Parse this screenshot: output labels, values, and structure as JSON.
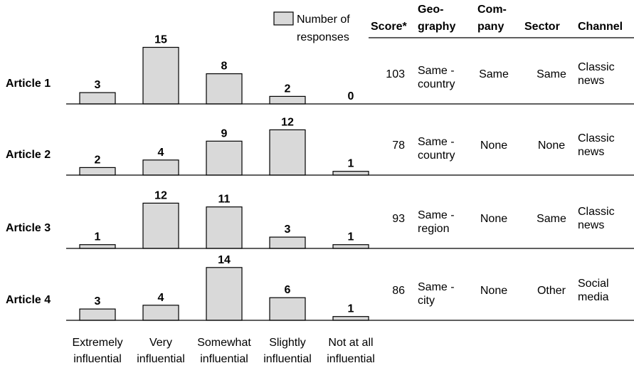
{
  "legend": {
    "label_line1": "Number of",
    "label_line2": "responses"
  },
  "table": {
    "headers": [
      {
        "line1": "Score*",
        "line2": ""
      },
      {
        "line1": "Geo-",
        "line2": "graphy"
      },
      {
        "line1": "Com-",
        "line2": "pany"
      },
      {
        "line1": "Sector",
        "line2": ""
      },
      {
        "line1": "Channel",
        "line2": ""
      }
    ],
    "rows": [
      {
        "score": "103",
        "geography": [
          "Same -",
          "country"
        ],
        "company": "Same",
        "sector": "Same",
        "channel": [
          "Classic",
          "news"
        ]
      },
      {
        "score": "78",
        "geography": [
          "Same -",
          "country"
        ],
        "company": "None",
        "sector": "None",
        "channel": [
          "Classic",
          "news"
        ]
      },
      {
        "score": "93",
        "geography": [
          "Same -",
          "region"
        ],
        "company": "None",
        "sector": "Same",
        "channel": [
          "Classic",
          "news"
        ]
      },
      {
        "score": "86",
        "geography": [
          "Same -",
          "city"
        ],
        "company": "None",
        "sector": "Other",
        "channel": [
          "Social",
          "media"
        ]
      }
    ]
  },
  "chart_data": {
    "type": "bar",
    "layout": "small-multiples",
    "categories": [
      [
        "Extremely",
        "influential"
      ],
      [
        "Very",
        "influential"
      ],
      [
        "Somewhat",
        "influential"
      ],
      [
        "Slightly",
        "influential"
      ],
      [
        "Not at all",
        "influential"
      ]
    ],
    "series": [
      {
        "name": "Article 1",
        "values": [
          3,
          15,
          8,
          2,
          0
        ]
      },
      {
        "name": "Article 2",
        "values": [
          2,
          4,
          9,
          12,
          1
        ]
      },
      {
        "name": "Article 3",
        "values": [
          1,
          12,
          11,
          3,
          1
        ]
      },
      {
        "name": "Article 4",
        "values": [
          3,
          4,
          14,
          6,
          1
        ]
      }
    ],
    "legend": "top",
    "grid": false,
    "colors": {
      "bar_fill": "#d9d9d9",
      "bar_stroke": "#000000"
    }
  }
}
